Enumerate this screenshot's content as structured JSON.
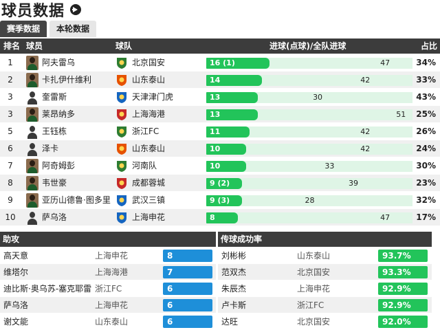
{
  "header": {
    "title": "球员数据"
  },
  "tabs": [
    {
      "label": "赛季数据"
    },
    {
      "label": "本轮数据"
    }
  ],
  "main_table": {
    "columns": {
      "rank": "排名",
      "player": "球员",
      "team": "球队",
      "goals": "进球(点球)/全队进球",
      "share": "占比"
    },
    "rows": [
      {
        "rank": "1",
        "player": "阿夫雷乌",
        "team": "北京国安",
        "goals_label": "16 (1)",
        "goals": 16,
        "team_goals": 47,
        "share": "34%",
        "crest": "#2e7d32",
        "photo": true
      },
      {
        "rank": "2",
        "player": "卡扎伊什维利",
        "team": "山东泰山",
        "goals_label": "14",
        "goals": 14,
        "team_goals": 42,
        "share": "33%",
        "crest": "#e65100",
        "photo": true
      },
      {
        "rank": "3",
        "player": "奎雷斯",
        "team": "天津津门虎",
        "goals_label": "13",
        "goals": 13,
        "team_goals": 30,
        "share": "43%",
        "crest": "#1565c0",
        "photo": false
      },
      {
        "rank": "3",
        "player": "莱昂纳多",
        "team": "上海海港",
        "goals_label": "13",
        "goals": 13,
        "team_goals": 51,
        "share": "25%",
        "crest": "#c62828",
        "photo": true
      },
      {
        "rank": "5",
        "player": "王钰栋",
        "team": "浙江FC",
        "goals_label": "11",
        "goals": 11,
        "team_goals": 42,
        "share": "26%",
        "crest": "#2e7d32",
        "photo": false
      },
      {
        "rank": "6",
        "player": "泽卡",
        "team": "山东泰山",
        "goals_label": "10",
        "goals": 10,
        "team_goals": 42,
        "share": "24%",
        "crest": "#e65100",
        "photo": false
      },
      {
        "rank": "7",
        "player": "阿奇姆彭",
        "team": "河南队",
        "goals_label": "10",
        "goals": 10,
        "team_goals": 33,
        "share": "30%",
        "crest": "#2e7d32",
        "photo": true
      },
      {
        "rank": "8",
        "player": "韦世豪",
        "team": "成都蓉城",
        "goals_label": "9 (2)",
        "goals": 9,
        "team_goals": 39,
        "share": "23%",
        "crest": "#c62828",
        "photo": true
      },
      {
        "rank": "9",
        "player": "亚历山德鲁·图多里",
        "team": "武汉三镇",
        "goals_label": "9 (3)",
        "goals": 9,
        "team_goals": 28,
        "share": "32%",
        "crest": "#1565c0",
        "photo": true
      },
      {
        "rank": "10",
        "player": "萨乌洛",
        "team": "上海申花",
        "goals_label": "8",
        "goals": 8,
        "team_goals": 47,
        "share": "17%",
        "crest": "#1565c0",
        "photo": false
      }
    ]
  },
  "assists": {
    "title": "助攻",
    "rows": [
      {
        "player": "高天意",
        "team": "上海申花",
        "value": "8"
      },
      {
        "player": "维塔尔",
        "team": "上海海港",
        "value": "7"
      },
      {
        "player": "迪比斯·奥乌苏-塞克耶雷",
        "team": "浙江FC",
        "value": "6"
      },
      {
        "player": "萨乌洛",
        "team": "上海申花",
        "value": "6"
      },
      {
        "player": "谢文能",
        "team": "山东泰山",
        "value": "6"
      }
    ]
  },
  "passing": {
    "title": "传球成功率",
    "rows": [
      {
        "player": "刘彬彬",
        "team": "山东泰山",
        "value": "93.7%"
      },
      {
        "player": "范双杰",
        "team": "北京国安",
        "value": "93.3%"
      },
      {
        "player": "朱辰杰",
        "team": "上海申花",
        "value": "92.9%"
      },
      {
        "player": "卢卡斯",
        "team": "浙江FC",
        "value": "92.9%"
      },
      {
        "player": "达旺",
        "team": "北京国安",
        "value": "92.0%"
      }
    ]
  }
}
